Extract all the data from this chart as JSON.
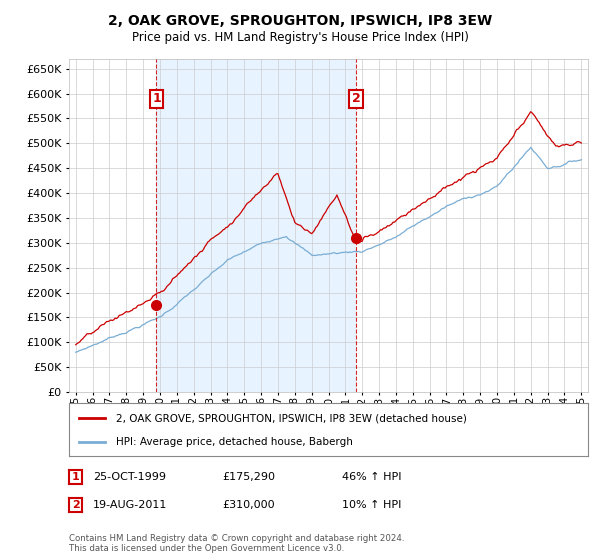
{
  "title": "2, OAK GROVE, SPROUGHTON, IPSWICH, IP8 3EW",
  "subtitle": "Price paid vs. HM Land Registry's House Price Index (HPI)",
  "ylim": [
    0,
    670000
  ],
  "yticks": [
    0,
    50000,
    100000,
    150000,
    200000,
    250000,
    300000,
    350000,
    400000,
    450000,
    500000,
    550000,
    600000,
    650000
  ],
  "legend_line1": "2, OAK GROVE, SPROUGHTON, IPSWICH, IP8 3EW (detached house)",
  "legend_line2": "HPI: Average price, detached house, Babergh",
  "sale1_label": "1",
  "sale1_date": "25-OCT-1999",
  "sale1_price": "£175,290",
  "sale1_hpi": "46% ↑ HPI",
  "sale2_label": "2",
  "sale2_date": "19-AUG-2011",
  "sale2_price": "£310,000",
  "sale2_hpi": "10% ↑ HPI",
  "footer": "Contains HM Land Registry data © Crown copyright and database right 2024.\nThis data is licensed under the Open Government Licence v3.0.",
  "sale1_year": 1999.79,
  "sale1_value": 175290,
  "sale2_year": 2011.63,
  "sale2_value": 310000,
  "grid_color": "#cccccc",
  "red_color": "#cc0000",
  "blue_color": "#7aadd4",
  "shade_color": "#ddeeff",
  "vline_color": "#cc0000",
  "background_color": "#ffffff",
  "xlim_left": 1994.6,
  "xlim_right": 2025.4
}
